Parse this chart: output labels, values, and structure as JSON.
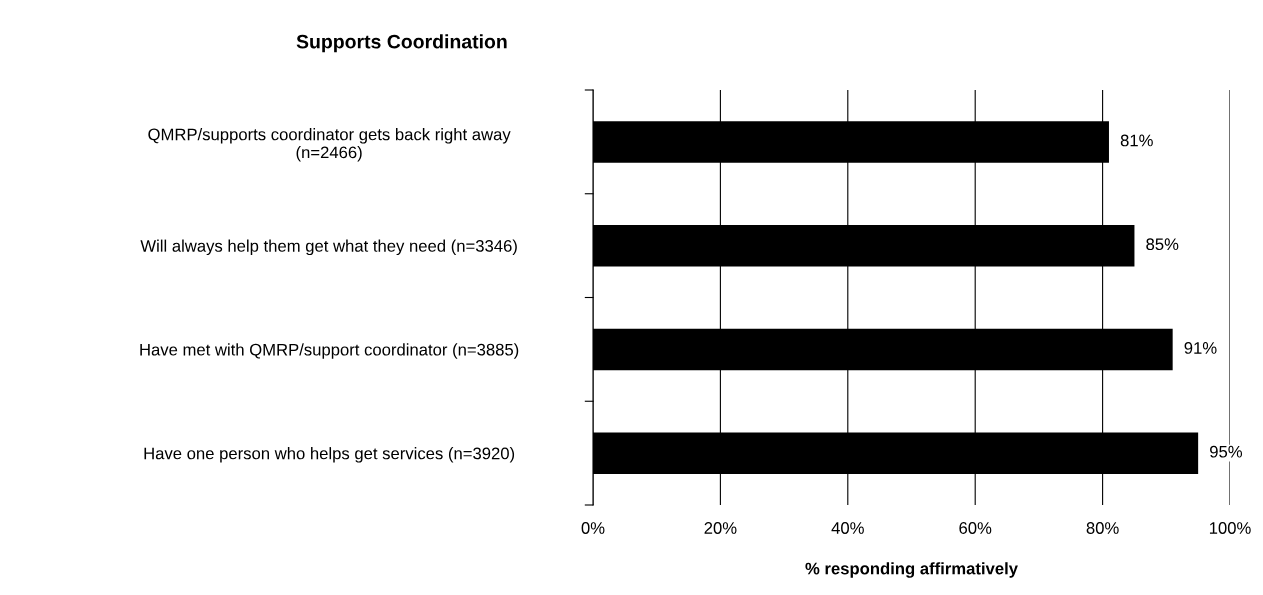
{
  "chart_data": {
    "type": "bar",
    "orientation": "horizontal",
    "title": "Supports Coordination",
    "xlabel": "% responding affirmatively",
    "categories": [
      "QMRP/supports coordinator gets back right away\n(n=2466)",
      "Will always help them get what they need (n=3346)",
      "Have met with QMRP/support coordinator (n=3885)",
      "Have one person who helps get services (n=3920)"
    ],
    "values": [
      81,
      85,
      91,
      95
    ],
    "value_labels": [
      "81%",
      "85%",
      "91%",
      "95%"
    ],
    "color": "#000000",
    "xlim": [
      0,
      100
    ],
    "xticks": [
      {
        "value": 0,
        "label": "0%"
      },
      {
        "value": 20,
        "label": "20%"
      },
      {
        "value": 40,
        "label": "40%"
      },
      {
        "value": 60,
        "label": "60%"
      },
      {
        "value": 80,
        "label": "80%"
      },
      {
        "value": 100,
        "label": "100%"
      }
    ],
    "grid": "x",
    "legend": false
  }
}
